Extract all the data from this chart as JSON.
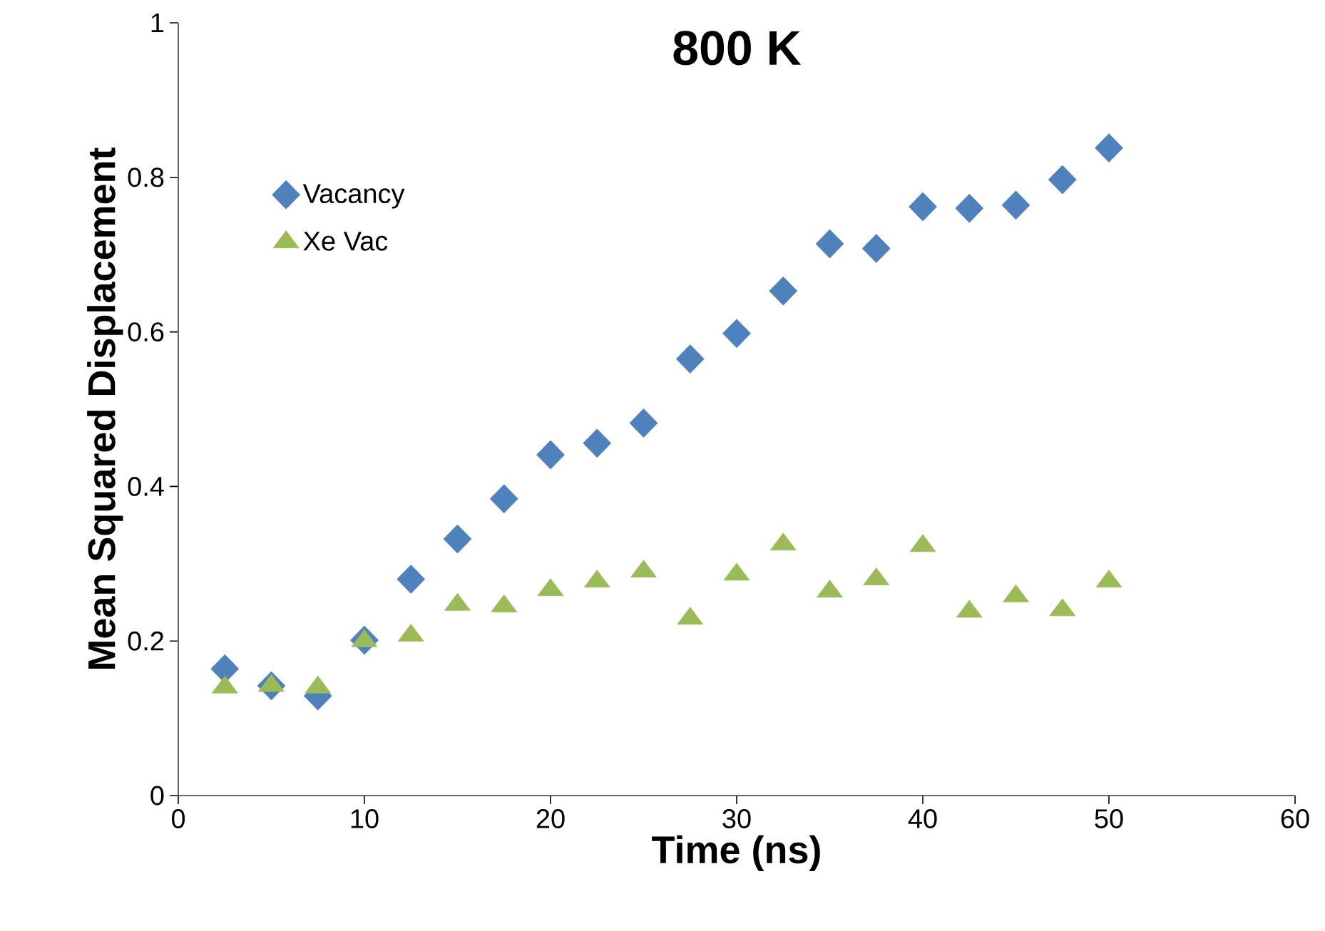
{
  "chart_data": {
    "type": "scatter",
    "title": "800 K",
    "xlabel": "Time (ns)",
    "ylabel": "Mean Squared Displacement",
    "x": [
      2.5,
      5,
      7.5,
      10,
      12.5,
      15,
      17.5,
      20,
      22.5,
      25,
      27.5,
      30,
      32.5,
      35,
      37.5,
      40,
      42.5,
      45,
      47.5,
      50
    ],
    "series": [
      {
        "name": "Vacancy",
        "color": "#4f81bd",
        "marker": "diamond",
        "values": [
          0.164,
          0.142,
          0.129,
          0.201,
          0.28,
          0.332,
          0.384,
          0.441,
          0.456,
          0.482,
          0.565,
          0.598,
          0.653,
          0.714,
          0.708,
          0.762,
          0.76,
          0.764,
          0.797,
          0.838
        ]
      },
      {
        "name": "Xe Vac",
        "color": "#9bbb59",
        "marker": "triangle",
        "values": [
          0.14,
          0.142,
          0.14,
          0.2,
          0.207,
          0.247,
          0.245,
          0.266,
          0.277,
          0.29,
          0.229,
          0.286,
          0.325,
          0.264,
          0.28,
          0.323,
          0.238,
          0.258,
          0.24,
          0.277
        ]
      }
    ],
    "xlim": [
      0,
      60
    ],
    "xticks": [
      0,
      10,
      20,
      30,
      40,
      50,
      60
    ],
    "ylim": [
      0,
      1
    ],
    "yticks": [
      0,
      0.2,
      0.4,
      0.6,
      0.8,
      1
    ],
    "grid": false,
    "legend": "top left"
  }
}
